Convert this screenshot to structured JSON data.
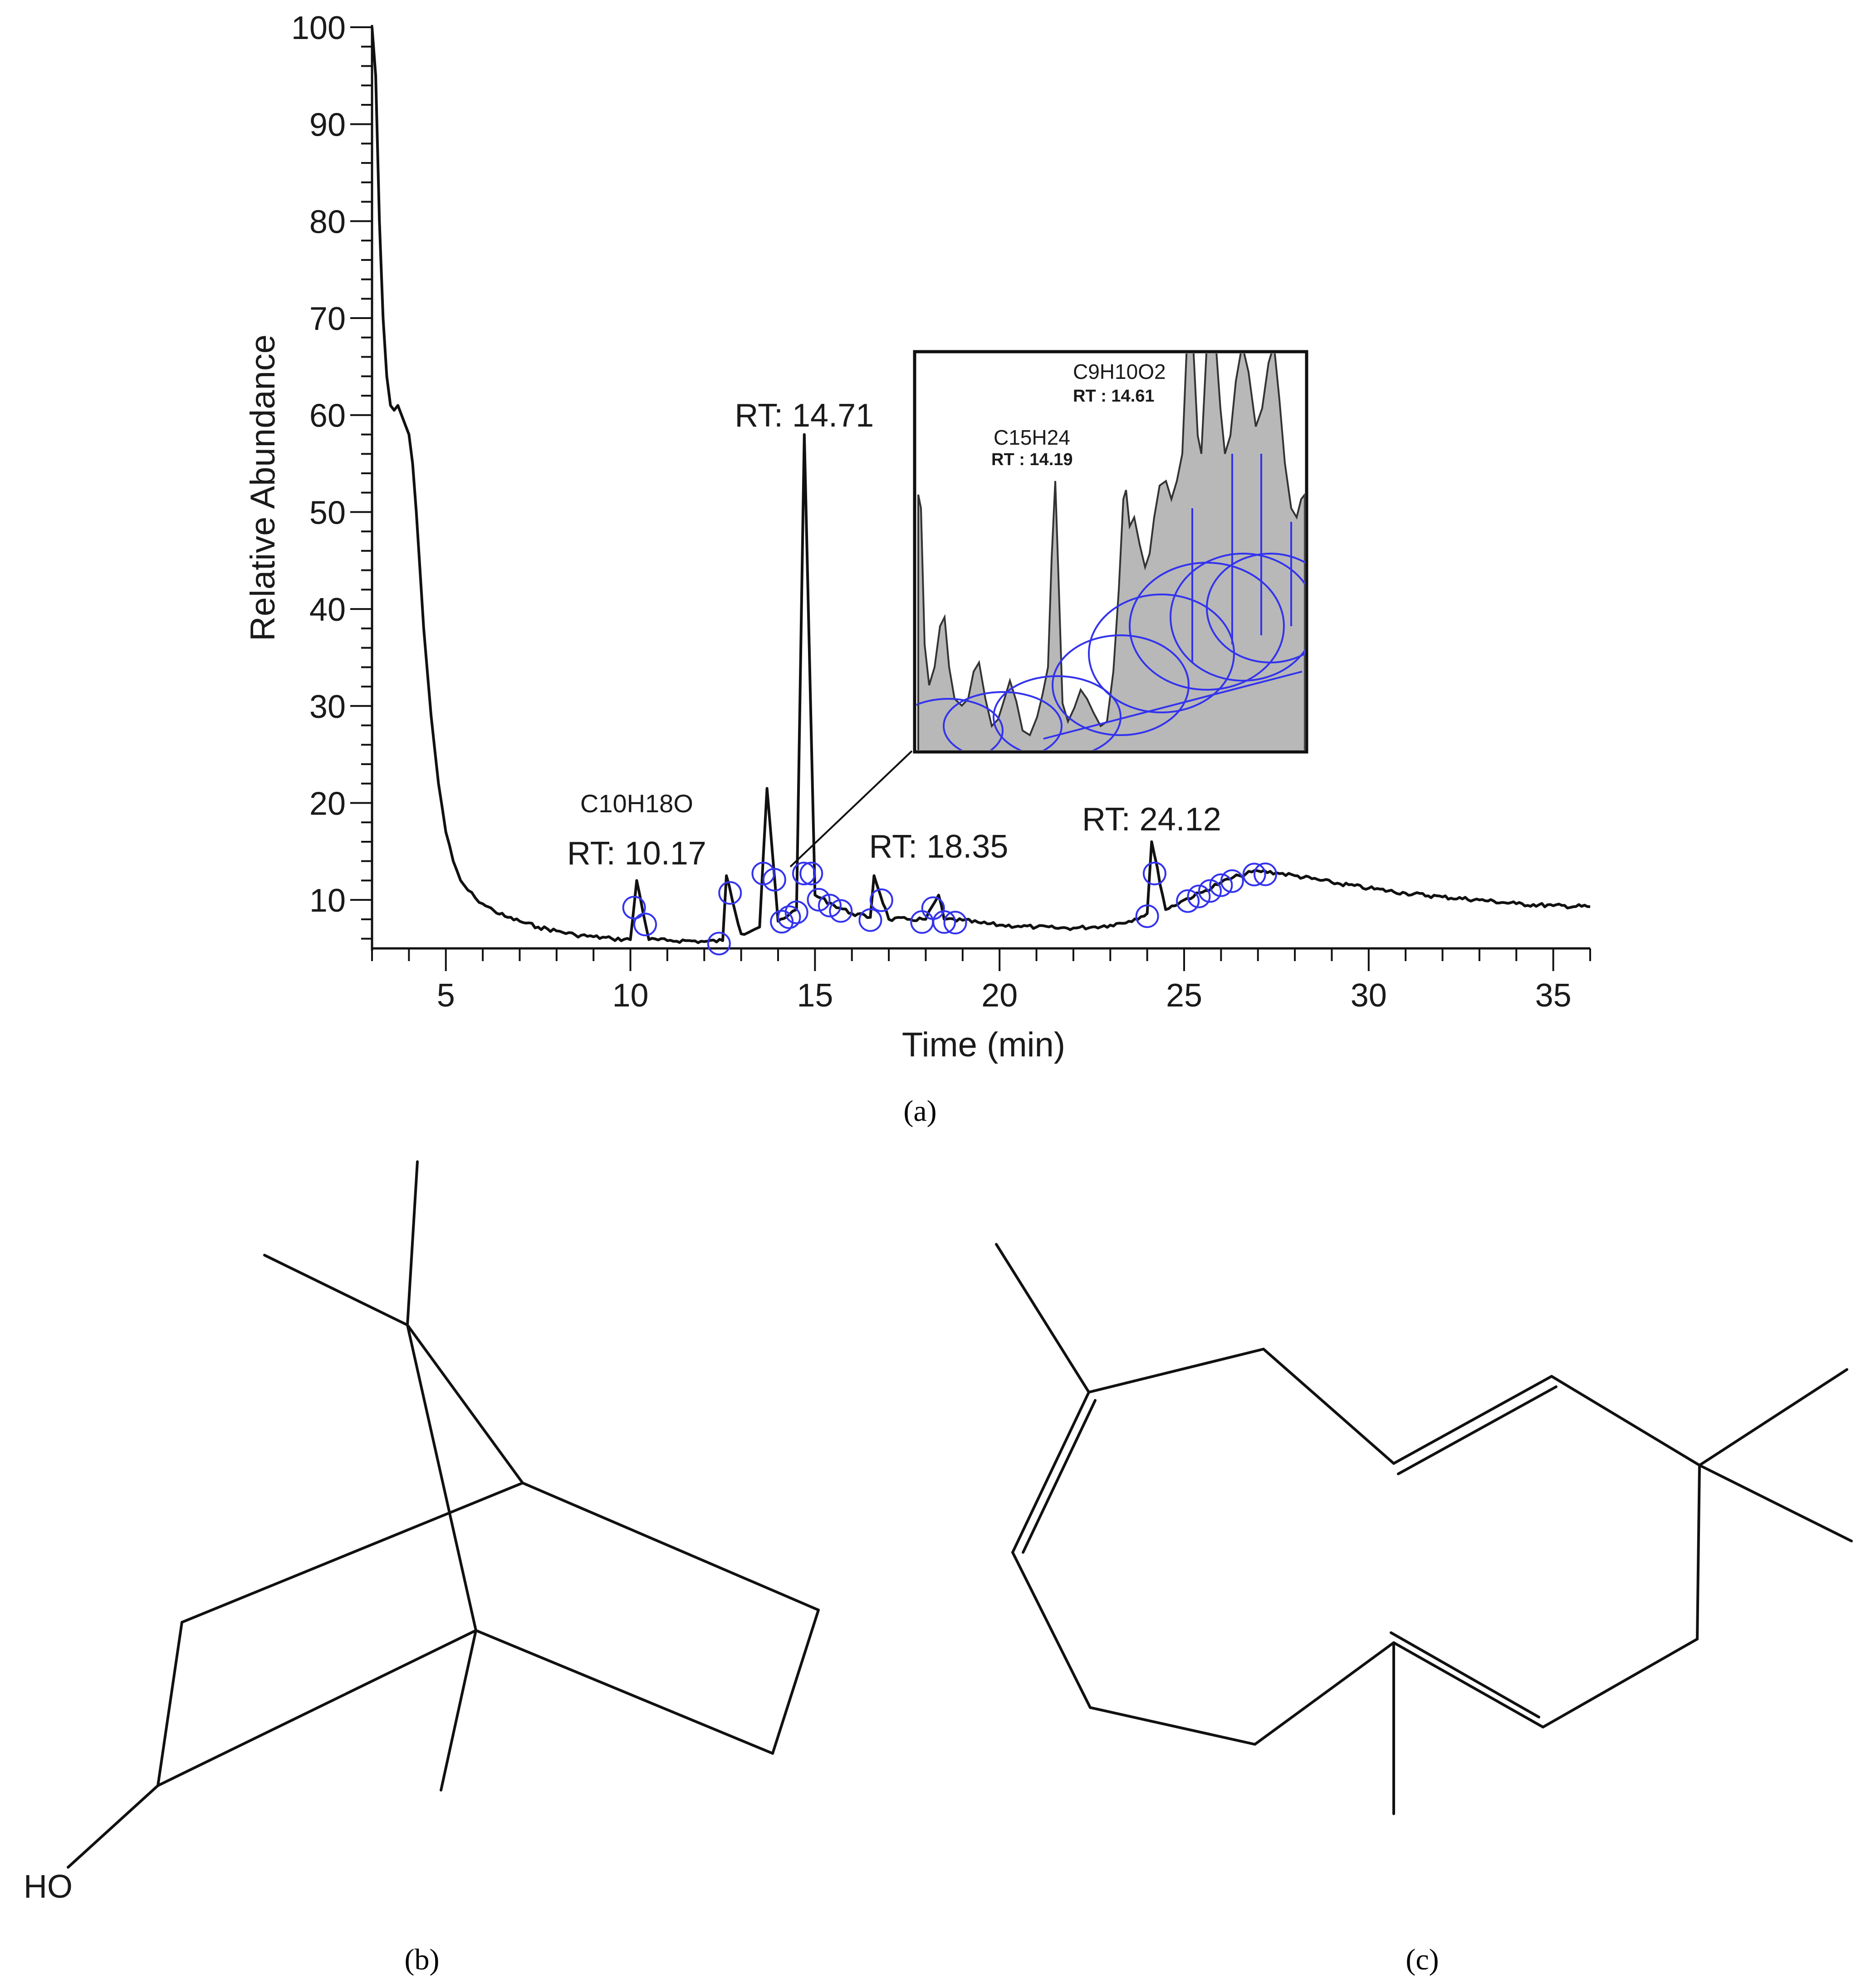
{
  "panels": {
    "a": "(a)",
    "b": "(b)",
    "c": "(c)"
  },
  "chart_data": {
    "type": "line",
    "xlabel": "Time (min)",
    "ylabel": "Relative Abundance",
    "xlim": [
      3,
      36
    ],
    "ylim": [
      5,
      100
    ],
    "x_ticks": [
      5,
      10,
      15,
      20,
      25,
      30,
      35
    ],
    "y_ticks": [
      10,
      20,
      30,
      40,
      50,
      60,
      70,
      80,
      90,
      100
    ],
    "series": [
      {
        "x": [
          3.0,
          3.1,
          3.2,
          3.3,
          3.4,
          3.5,
          3.6,
          3.7,
          3.8,
          3.9,
          4.0,
          4.1,
          4.2,
          4.3,
          4.4,
          4.6,
          4.8,
          5.0,
          5.2,
          5.4,
          5.6,
          5.8,
          6.0,
          6.3,
          6.6,
          7.0,
          7.5,
          8.0,
          8.5,
          9.0,
          9.5,
          10.0,
          10.17,
          10.5,
          11.0,
          11.5,
          12.0,
          12.5,
          12.6,
          13.0,
          13.5,
          13.7,
          14.0,
          14.3,
          14.5,
          14.71,
          15.0,
          15.5,
          16.0,
          16.5,
          16.6,
          17.0,
          17.5,
          18.0,
          18.35,
          18.5,
          19.0,
          19.5,
          20.0,
          20.5,
          21.0,
          21.5,
          22.0,
          22.5,
          23.0,
          23.5,
          24.0,
          24.12,
          24.5,
          25.0,
          25.5,
          26.0,
          26.5,
          27.0,
          27.5,
          28.0,
          29.0,
          30.0,
          31.0,
          32.0,
          33.0,
          34.0,
          35.0,
          36.0
        ],
        "values": [
          100,
          95,
          80,
          70,
          64,
          61,
          60.5,
          61,
          60,
          59,
          58,
          55,
          50,
          44,
          38,
          29,
          22,
          17,
          14,
          12,
          11,
          10.2,
          9.6,
          8.9,
          8.3,
          7.8,
          7.2,
          6.8,
          6.4,
          6.2,
          6.0,
          5.9,
          12.0,
          5.9,
          5.8,
          5.8,
          5.7,
          5.8,
          12.5,
          6.5,
          7.2,
          21.5,
          7.8,
          8.5,
          9.0,
          58.0,
          10.5,
          9.5,
          8.6,
          8.2,
          12.5,
          8.0,
          8.0,
          8.0,
          10.5,
          8.0,
          7.9,
          7.6,
          7.4,
          7.3,
          7.2,
          7.1,
          7.1,
          7.2,
          7.4,
          7.8,
          8.6,
          16.0,
          9.0,
          10.0,
          10.8,
          11.8,
          12.5,
          13.0,
          12.8,
          12.5,
          11.8,
          11.2,
          10.7,
          10.3,
          10.0,
          9.6,
          9.4,
          9.3
        ]
      }
    ],
    "annotations": [
      {
        "text": "C10H18O",
        "x": 10.17,
        "y": 16
      },
      {
        "text": "RT: 10.17",
        "x": 10.17,
        "y": 12
      },
      {
        "text": "RT: 14.71",
        "x": 14.71,
        "y": 58
      },
      {
        "text": "RT: 18.35",
        "x": 18.35,
        "y": 10.5
      },
      {
        "text": "RT: 24.12",
        "x": 24.12,
        "y": 16
      }
    ],
    "inset": {
      "labels": [
        {
          "formula": "C9H10O2",
          "rt": "RT : 14.61"
        },
        {
          "formula": "C15H24",
          "rt": "RT : 14.19"
        }
      ]
    },
    "markers_x": [
      10.1,
      10.4,
      12.4,
      12.7,
      13.6,
      13.9,
      14.1,
      14.3,
      14.5,
      14.7,
      14.9,
      15.1,
      15.4,
      15.7,
      16.5,
      16.8,
      17.9,
      18.2,
      18.5,
      18.8,
      24.0,
      24.2,
      25.1,
      25.4,
      25.7,
      26.0,
      26.3,
      26.9,
      27.2
    ]
  },
  "molecules": {
    "b": {
      "hydroxyl_label": "HO"
    }
  }
}
